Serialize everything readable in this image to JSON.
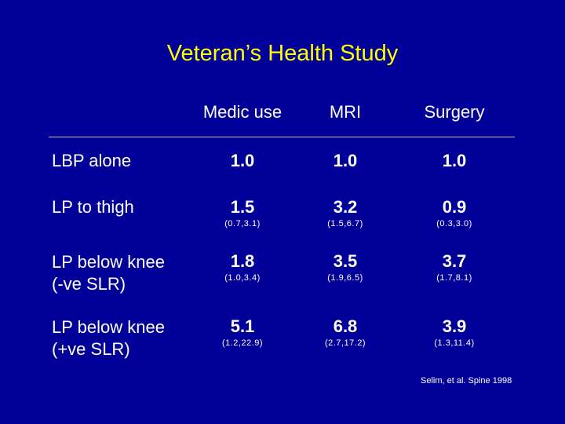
{
  "title": "Veteran’s Health Study",
  "columns": [
    "Medic use",
    "MRI",
    "Surgery"
  ],
  "rows": [
    {
      "label": [
        "LBP alone"
      ],
      "values": [
        "1.0",
        "1.0",
        "1.0"
      ],
      "ci": [
        "",
        "",
        ""
      ]
    },
    {
      "label": [
        "LP to thigh"
      ],
      "values": [
        "1.5",
        "3.2",
        "0.9"
      ],
      "ci": [
        "(0.7,3.1)",
        "(1.5,6.7)",
        "(0.3,3.0)"
      ]
    },
    {
      "label": [
        "LP below knee",
        "(-ve SLR)"
      ],
      "values": [
        "1.8",
        "3.5",
        "3.7"
      ],
      "ci": [
        "(1.0,3.4)",
        "(1.9,6.5)",
        "(1.7,8.1)"
      ]
    },
    {
      "label": [
        "LP below knee",
        "(+ve SLR)"
      ],
      "values": [
        "5.1",
        "6.8",
        "3.9"
      ],
      "ci": [
        "(1.2,22.9)",
        "(2.7,17.2)",
        "(1.3,11.4)"
      ]
    }
  ],
  "citation": "Selim, et al. Spine 1998",
  "colors": {
    "background": "#000099",
    "title": "#ffff00",
    "text": "#ffffff"
  }
}
